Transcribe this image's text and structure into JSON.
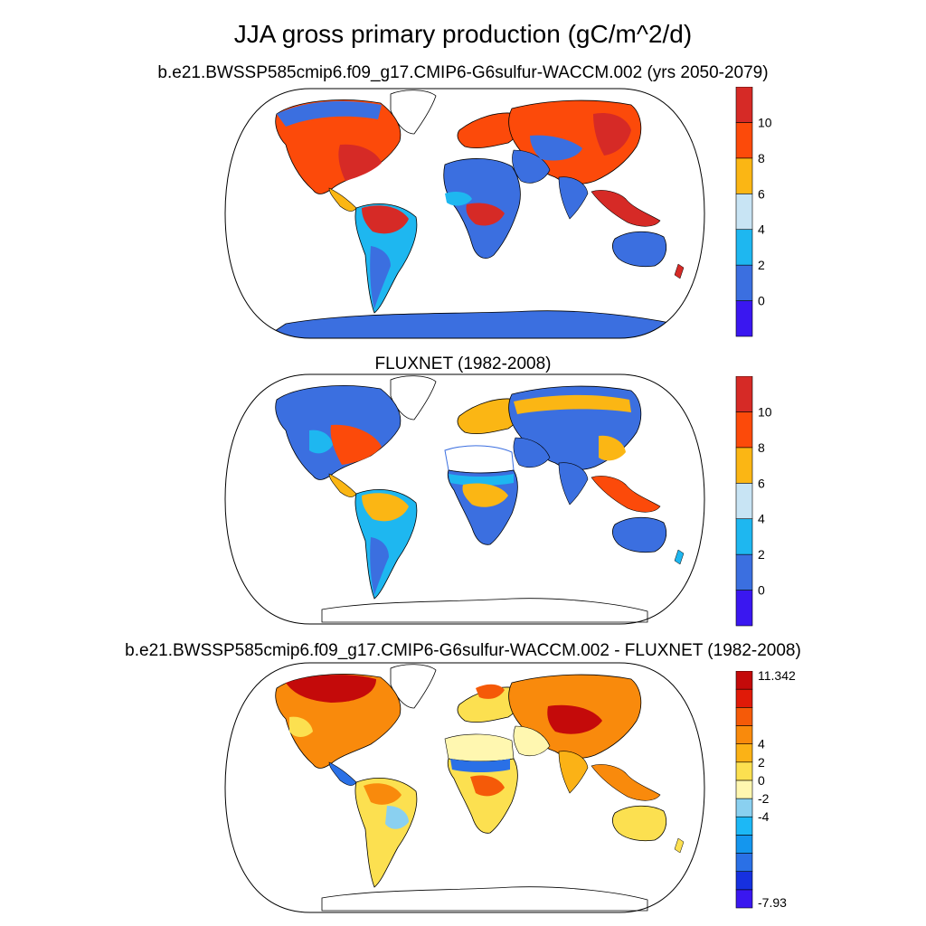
{
  "title": "JJA gross primary production (gC/m^2/d)",
  "panels": [
    {
      "title": "b.e21.BWSSP585cmip6.f09_g17.CMIP6-G6sulfur-WACCM.002 (yrs 2050-2079)",
      "colorbar": {
        "colors": [
          "#3a17f0",
          "#3b6fe0",
          "#1eb7f0",
          "#c8e4f4",
          "#fbb614",
          "#fc4a0a",
          "#d62a26"
        ],
        "tick_labels": [
          "0",
          "2",
          "4",
          "6",
          "8",
          "10"
        ]
      }
    },
    {
      "title": "FLUXNET (1982-2008)",
      "colorbar": {
        "colors": [
          "#3a17f0",
          "#3b6fe0",
          "#1eb7f0",
          "#c8e4f4",
          "#fbb614",
          "#fc4a0a",
          "#d62a26"
        ],
        "tick_labels": [
          "0",
          "2",
          "4",
          "6",
          "8",
          "10"
        ]
      }
    },
    {
      "title": "b.e21.BWSSP585cmip6.f09_g17.CMIP6-G6sulfur-WACCM.002 - FLUXNET (1982-2008)",
      "colorbar": {
        "colors": [
          "#3a17f0",
          "#1630e0",
          "#2a70e6",
          "#1496ee",
          "#1cb8f6",
          "#8ad0f0",
          "#fff7b0",
          "#fce050",
          "#fbb216",
          "#f98a0c",
          "#f55a08",
          "#e01a08",
          "#c40a0a"
        ],
        "tick_labels": [
          "-4",
          "-2",
          "0",
          "2",
          "4"
        ],
        "max_label": "11.342",
        "min_label": "-7.93"
      }
    }
  ]
}
